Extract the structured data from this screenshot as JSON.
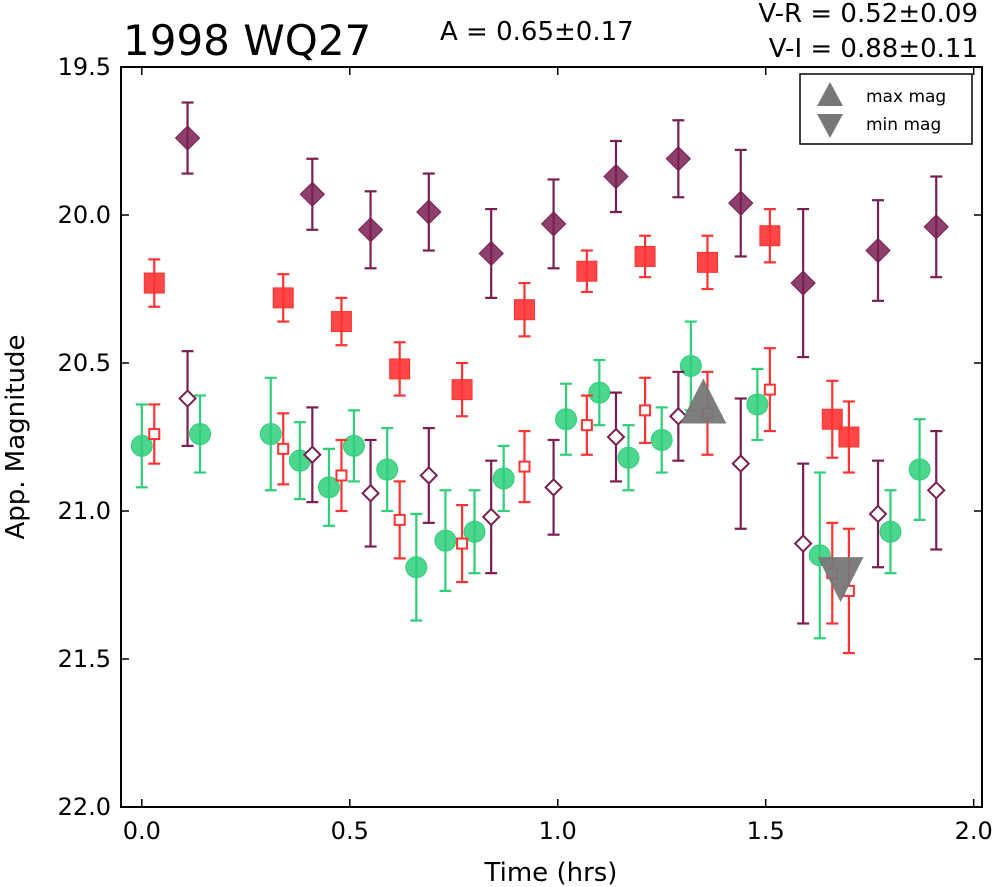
{
  "chart_data": {
    "type": "scatter",
    "title": "1998 WQ27",
    "annotations": {
      "amplitude": "A  = 0.65±0.17",
      "v_r": "V-R = 0.52±0.09",
      "v_i": "V-I  = 0.88±0.11"
    },
    "xlabel": "Time (hrs)",
    "ylabel": "App. Magnitude",
    "xlim": [
      -0.05,
      2.02
    ],
    "ylim": [
      22.0,
      19.5
    ],
    "y_inverted": true,
    "x_ticks": [
      "0.0",
      "0.5",
      "1.0",
      "1.5",
      "2.0"
    ],
    "y_ticks": [
      "19.5",
      "20.0",
      "20.5",
      "21.0",
      "21.5",
      "22.0"
    ],
    "grid": false,
    "legend_position": "top-right",
    "legend": [
      {
        "label": "max mag",
        "marker": "triangle-up",
        "color": "#777777"
      },
      {
        "label": "min mag",
        "marker": "triangle-down",
        "color": "#777777"
      }
    ],
    "series": [
      {
        "marker": "diamond-filled",
        "color": "#7a1f52",
        "x": [
          0.11,
          0.41,
          0.55,
          0.69,
          0.84,
          0.99,
          1.14,
          1.29,
          1.44,
          1.59,
          1.77,
          1.91
        ],
        "y": [
          19.74,
          19.93,
          20.05,
          19.99,
          20.13,
          20.03,
          19.87,
          19.81,
          19.96,
          20.23,
          20.12,
          20.04
        ],
        "err": [
          0.12,
          0.12,
          0.13,
          0.13,
          0.15,
          0.15,
          0.12,
          0.13,
          0.18,
          0.25,
          0.17,
          0.17
        ]
      },
      {
        "marker": "square-filled",
        "color": "#ff3333",
        "x": [
          0.03,
          0.34,
          0.48,
          0.62,
          0.77,
          0.92,
          1.07,
          1.21,
          1.36,
          1.51,
          1.66,
          1.7
        ],
        "y": [
          20.23,
          20.28,
          20.36,
          20.52,
          20.59,
          20.32,
          20.19,
          20.14,
          20.16,
          20.07,
          20.69,
          20.75
        ],
        "err": [
          0.08,
          0.08,
          0.08,
          0.09,
          0.09,
          0.09,
          0.07,
          0.07,
          0.09,
          0.09,
          0.13,
          0.12
        ]
      },
      {
        "marker": "circle-filled",
        "color": "#2ecf79",
        "x": [
          0.0,
          0.14,
          0.31,
          0.38,
          0.45,
          0.51,
          0.59,
          0.66,
          0.73,
          0.8,
          0.87,
          1.02,
          1.1,
          1.17,
          1.25,
          1.32,
          1.48,
          1.63,
          1.8,
          1.87
        ],
        "y": [
          20.78,
          20.74,
          20.74,
          20.83,
          20.92,
          20.78,
          20.86,
          21.19,
          21.1,
          21.07,
          20.89,
          20.69,
          20.6,
          20.82,
          20.76,
          20.51,
          20.64,
          21.15,
          21.07,
          20.86
        ],
        "err": [
          0.14,
          0.13,
          0.19,
          0.13,
          0.13,
          0.12,
          0.14,
          0.18,
          0.17,
          0.14,
          0.11,
          0.12,
          0.11,
          0.11,
          0.11,
          0.15,
          0.12,
          0.28,
          0.14,
          0.17
        ]
      },
      {
        "marker": "diamond-open",
        "color": "#7a1f52",
        "x": [
          0.11,
          0.41,
          0.55,
          0.69,
          0.84,
          0.99,
          1.14,
          1.29,
          1.44,
          1.59,
          1.77,
          1.91
        ],
        "y": [
          20.62,
          20.81,
          20.94,
          20.88,
          21.02,
          20.92,
          20.75,
          20.68,
          20.84,
          21.11,
          21.01,
          20.93
        ],
        "err": [
          0.16,
          0.16,
          0.18,
          0.16,
          0.19,
          0.16,
          0.15,
          0.15,
          0.22,
          0.27,
          0.18,
          0.2
        ]
      },
      {
        "marker": "square-open",
        "color": "#ff3333",
        "x": [
          0.03,
          0.34,
          0.48,
          0.62,
          0.77,
          0.92,
          1.07,
          1.21,
          1.36,
          1.51,
          1.66,
          1.7
        ],
        "y": [
          20.74,
          20.79,
          20.88,
          21.03,
          21.11,
          20.85,
          20.71,
          20.66,
          20.67,
          20.59,
          21.21,
          21.27
        ],
        "err": [
          0.1,
          0.12,
          0.12,
          0.13,
          0.13,
          0.12,
          0.1,
          0.11,
          0.14,
          0.14,
          0.17,
          0.21
        ]
      }
    ],
    "extrema_markers": [
      {
        "type": "max",
        "marker": "triangle-up",
        "x": 1.35,
        "y": 20.64,
        "color": "#777777"
      },
      {
        "type": "min",
        "marker": "triangle-down",
        "x": 1.68,
        "y": 21.22,
        "color": "#777777"
      }
    ]
  }
}
